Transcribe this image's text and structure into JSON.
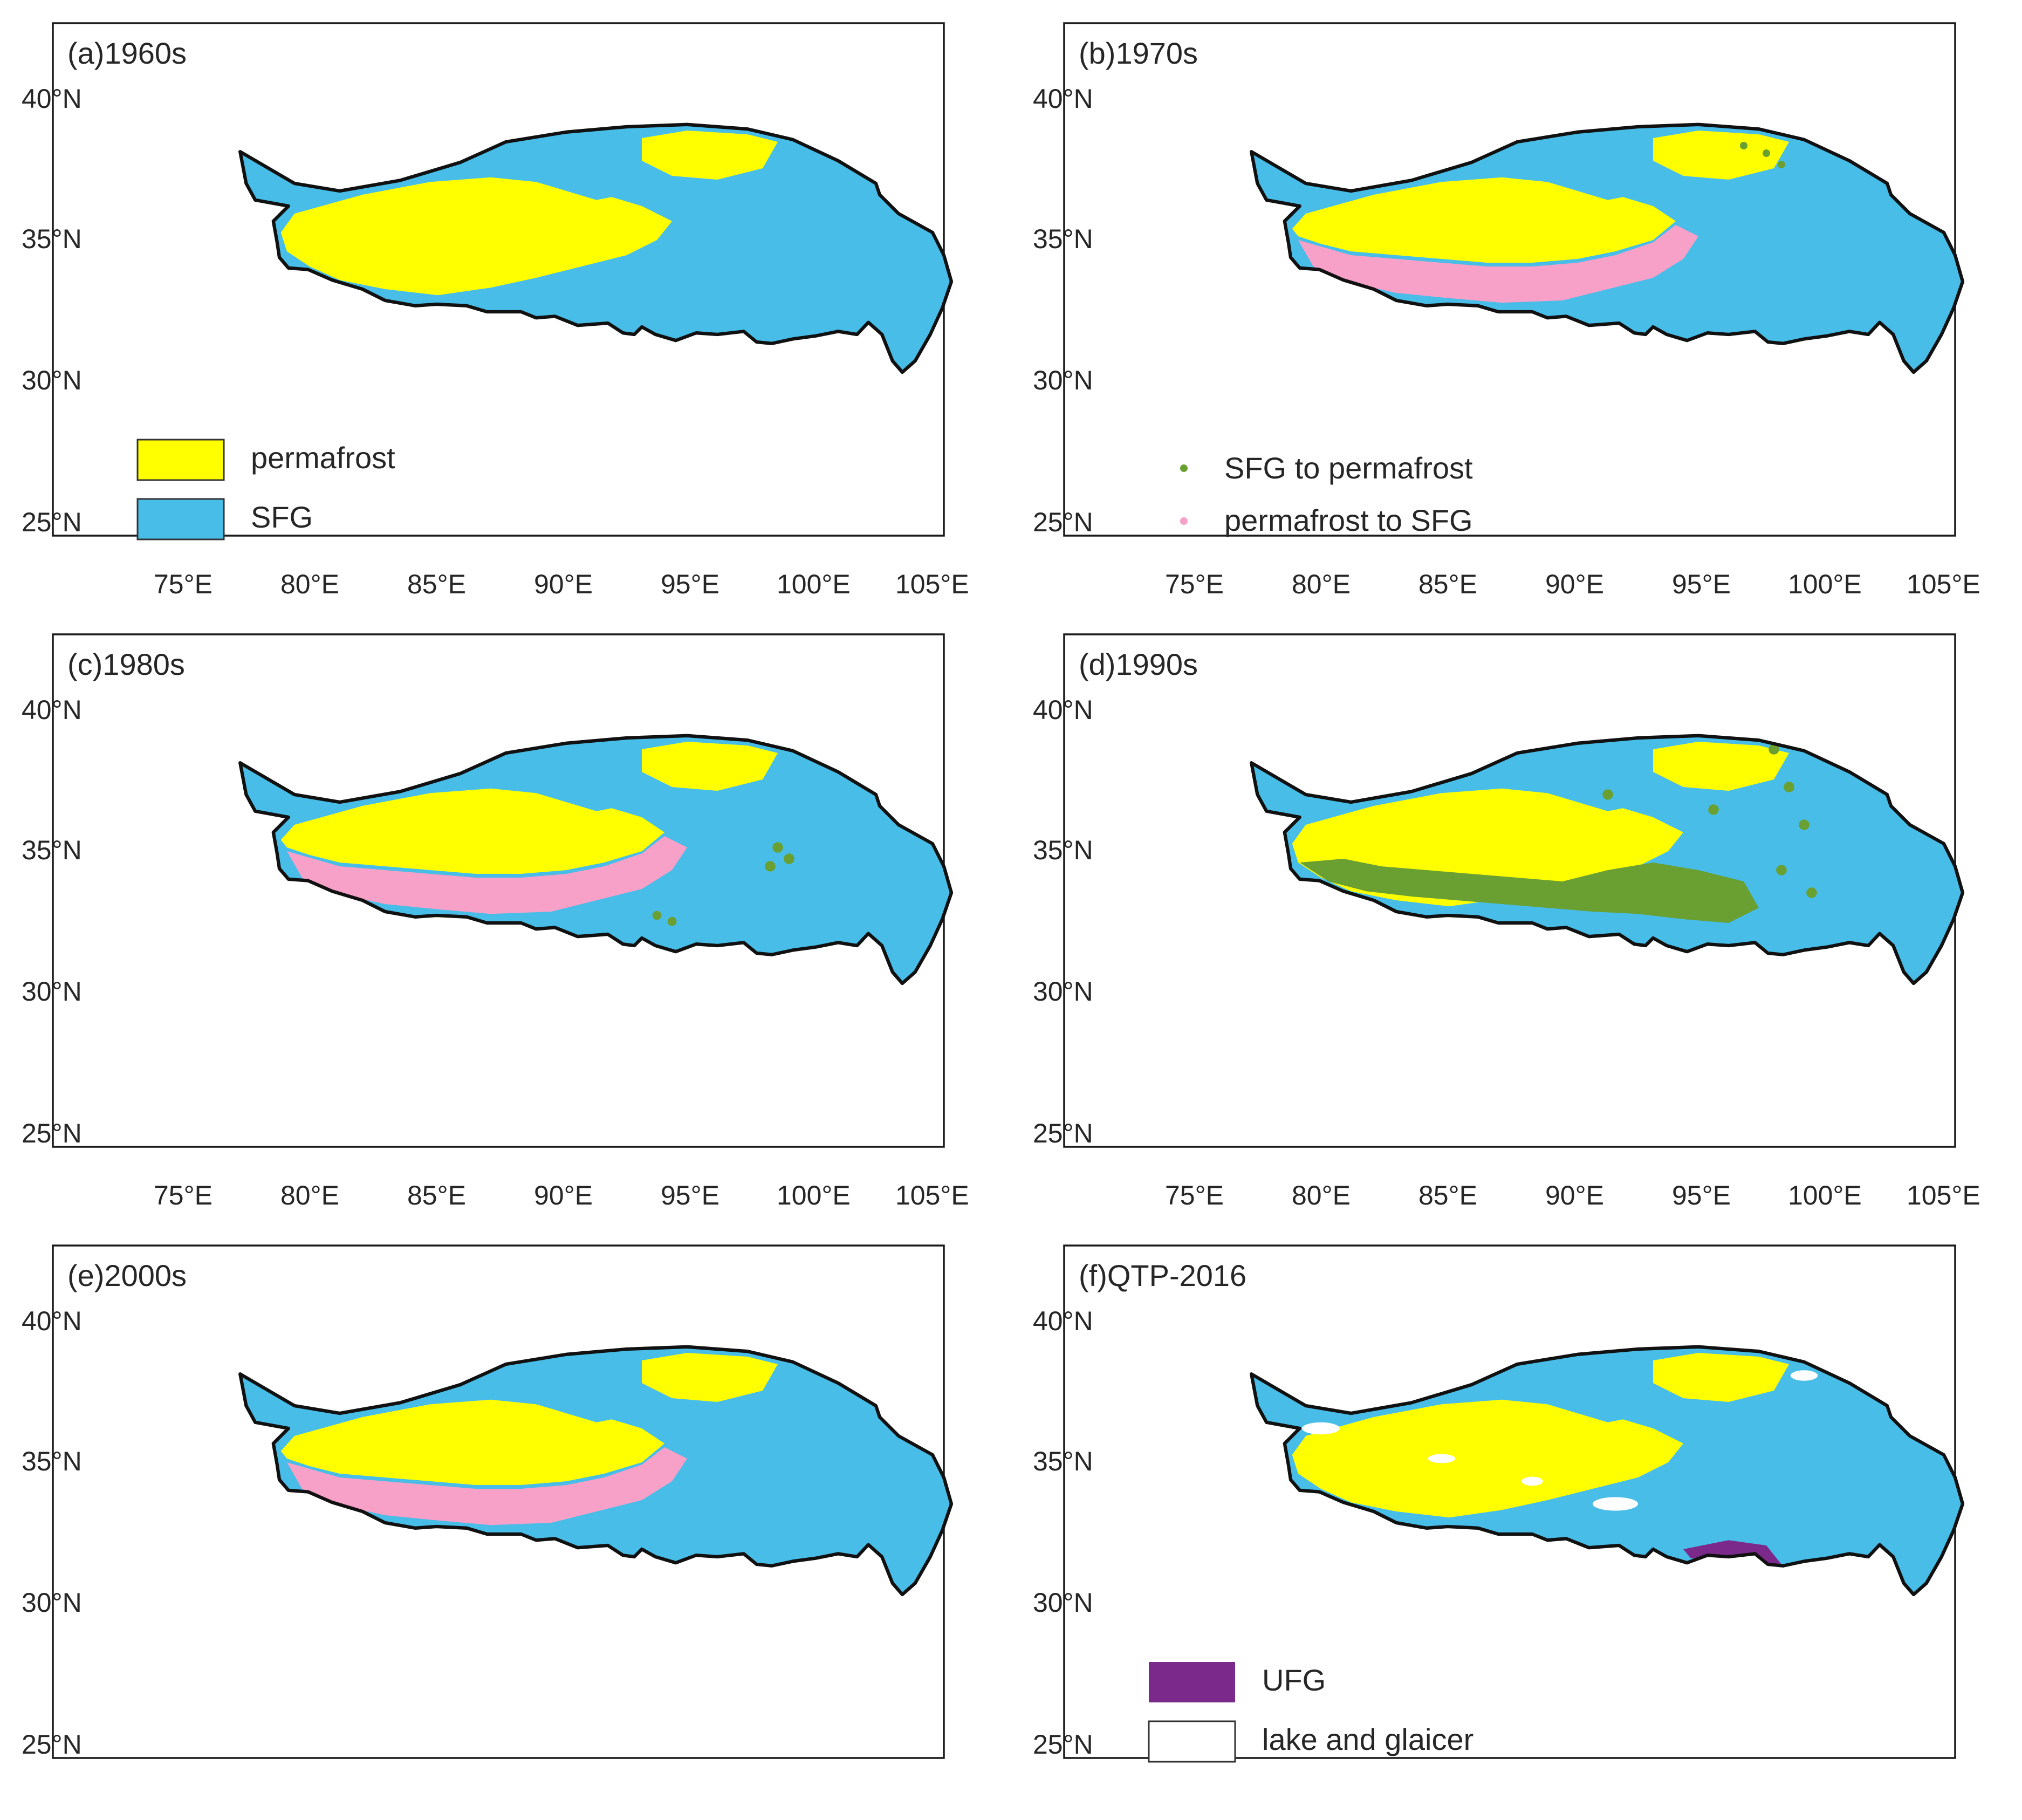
{
  "colors": {
    "permafrost": "#ffff00",
    "sfg": "#47bde8",
    "sfg_to_permafrost": "#6aa032",
    "permafrost_to_sfg": "#f7a0c8",
    "ufg": "#7b2a8c",
    "lake_and_glaicer": "#ffffff",
    "outline": "#111111"
  },
  "x_ticks": [
    "75°E",
    "80°E",
    "85°E",
    "90°E",
    "95°E",
    "100°E",
    "105°E"
  ],
  "y_ticks": [
    "40°N",
    "35°N",
    "30°N",
    "25°N"
  ],
  "legend_a": [
    {
      "label": "permafrost",
      "color_key": "permafrost"
    },
    {
      "label": "SFG",
      "color_key": "sfg"
    }
  ],
  "legend_b": [
    {
      "label": "SFG to permafrost",
      "color_key": "sfg_to_permafrost"
    },
    {
      "label": "permafrost to SFG",
      "color_key": "permafrost_to_sfg"
    }
  ],
  "legend_f": [
    {
      "label": "UFG",
      "color_key": "ufg"
    },
    {
      "label": "lake and glaicer",
      "color_key": "lake_and_glaicer"
    }
  ],
  "panels": [
    {
      "id": "a",
      "title": "(a)1960s",
      "show_x_ticks": true,
      "legend": "legend_a",
      "classes": [
        "permafrost",
        "SFG"
      ]
    },
    {
      "id": "b",
      "title": "(b)1970s",
      "show_x_ticks": true,
      "legend": "legend_b",
      "classes": [
        "permafrost",
        "SFG",
        "SFG to permafrost",
        "permafrost to SFG"
      ]
    },
    {
      "id": "c",
      "title": "(c)1980s",
      "show_x_ticks": true,
      "legend": null,
      "classes": [
        "permafrost",
        "SFG",
        "SFG to permafrost",
        "permafrost to SFG"
      ]
    },
    {
      "id": "d",
      "title": "(d)1990s",
      "show_x_ticks": true,
      "legend": null,
      "classes": [
        "permafrost",
        "SFG",
        "SFG to permafrost",
        "permafrost to SFG"
      ]
    },
    {
      "id": "e",
      "title": "(e)2000s",
      "show_x_ticks": false,
      "legend": null,
      "classes": [
        "permafrost",
        "SFG",
        "permafrost to SFG"
      ]
    },
    {
      "id": "f",
      "title": "(f)QTP-2016",
      "show_x_ticks": false,
      "legend": "legend_f",
      "classes": [
        "permafrost",
        "SFG",
        "UFG",
        "lake and glaicer"
      ]
    }
  ]
}
